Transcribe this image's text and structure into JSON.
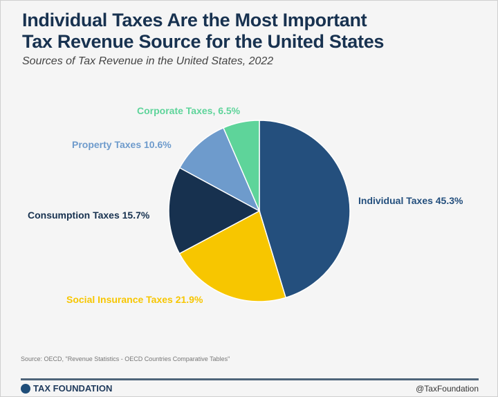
{
  "header": {
    "title_line1": "Individual Taxes Are the Most Important",
    "title_line2": "Tax Revenue Source for the United States",
    "subtitle": "Sources of Tax Revenue in the United States, 2022"
  },
  "chart_data": {
    "type": "pie",
    "title": "Individual Taxes Are the Most Important Tax Revenue Source for the United States",
    "subtitle": "Sources of Tax Revenue in the United States, 2022",
    "start_angle": "top",
    "direction": "clockwise",
    "slices": [
      {
        "name": "Individual Taxes",
        "value": 45.3,
        "label": "Individual Taxes 45.3%",
        "color": "#244f7d"
      },
      {
        "name": "Social Insurance Taxes",
        "value": 21.9,
        "label": "Social Insurance Taxes 21.9%",
        "color": "#f7c600"
      },
      {
        "name": "Consumption Taxes",
        "value": 15.7,
        "label": "Consumption Taxes 15.7%",
        "color": "#17314f"
      },
      {
        "name": "Property Taxes",
        "value": 10.6,
        "label": "Property Taxes 10.6%",
        "color": "#6e9bcc"
      },
      {
        "name": "Corporate Taxes",
        "value": 6.5,
        "label": "Corporate Taxes, 6.5%",
        "color": "#5ed49a"
      }
    ]
  },
  "footer": {
    "source": "Source: OECD, \"Revenue Statistics - OECD Countries Comparative Tables\"",
    "brand": "TAX FOUNDATION",
    "handle": "@TaxFoundation"
  }
}
